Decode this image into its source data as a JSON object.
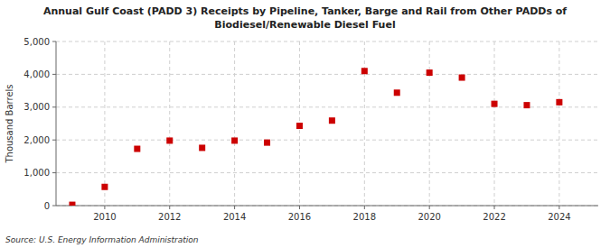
{
  "chart_data": {
    "type": "scatter",
    "title": "Annual Gulf Coast (PADD 3) Receipts by Pipeline, Tanker, Barge and Rail from Other PADDs of",
    "subtitle": "Biodiesel/Renewable Diesel Fuel",
    "y_label": "Thousand Barrels",
    "annotations": [
      "Source: U.S. Energy Information Administration"
    ],
    "x": [
      2009,
      2010,
      2011,
      2012,
      2013,
      2014,
      2015,
      2016,
      2017,
      2018,
      2019,
      2020,
      2021,
      2022,
      2023,
      2024
    ],
    "values": [
      25,
      570,
      1730,
      1980,
      1760,
      1980,
      1920,
      2430,
      2590,
      4100,
      3440,
      4050,
      3900,
      3100,
      3060,
      3150
    ],
    "color": "#cc0000",
    "marker": "square",
    "xlim": [
      2008.5,
      2025.2
    ],
    "xticks": [
      2010,
      2012,
      2014,
      2016,
      2018,
      2020,
      2022,
      2024
    ],
    "ylim": [
      0,
      5000
    ],
    "yticks": [
      0,
      {
        "value": 1000,
        "label": "1,000"
      },
      {
        "value": 2000,
        "label": "2,000"
      },
      {
        "value": 3000,
        "label": "3,000"
      },
      {
        "value": 4000,
        "label": "4,000"
      },
      {
        "value": 5000,
        "label": "5,000"
      }
    ],
    "grid": true
  }
}
